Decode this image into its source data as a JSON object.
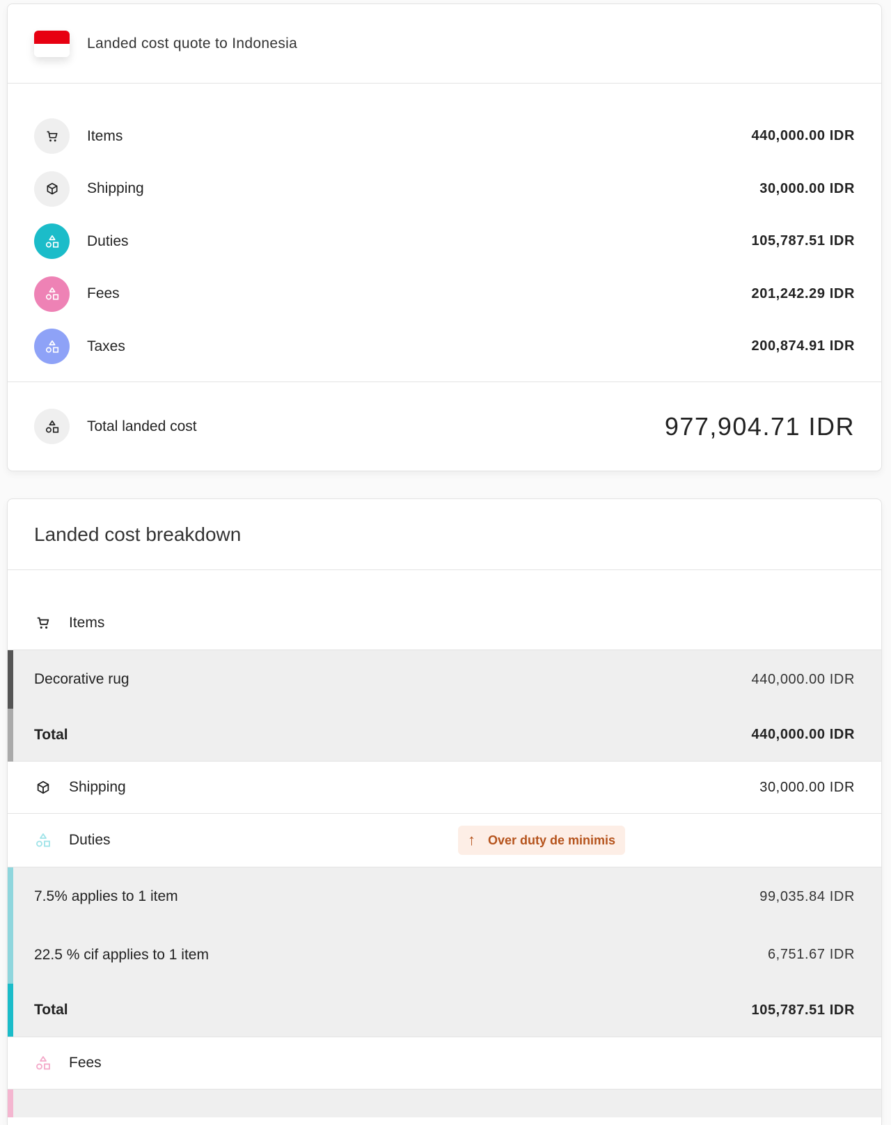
{
  "quote": {
    "title": "Landed cost quote to Indonesia",
    "flag_colors": [
      "#e70011",
      "#ffffff"
    ],
    "rows": [
      {
        "label": "Items",
        "amount": "440,000.00 IDR",
        "icon": "cart-icon",
        "color": "#efefef"
      },
      {
        "label": "Shipping",
        "amount": "30,000.00 IDR",
        "icon": "box-icon",
        "color": "#efefef"
      },
      {
        "label": "Duties",
        "amount": "105,787.51 IDR",
        "icon": "shapes-icon",
        "color": "#1bbcc9"
      },
      {
        "label": "Fees",
        "amount": "201,242.29 IDR",
        "icon": "shapes-icon",
        "color": "#ee82b5"
      },
      {
        "label": "Taxes",
        "amount": "200,874.91 IDR",
        "icon": "shapes-icon",
        "color": "#8ea2f7"
      }
    ],
    "total_label": "Total landed cost",
    "total_amount": "977,904.71 IDR"
  },
  "breakdown": {
    "title": "Landed cost breakdown",
    "items": {
      "label": "Items",
      "lines": [
        {
          "label": "Decorative rug",
          "amount": "440,000.00 IDR"
        }
      ],
      "total_label": "Total",
      "total_amount": "440,000.00 IDR"
    },
    "shipping": {
      "label": "Shipping",
      "amount": "30,000.00 IDR"
    },
    "duties": {
      "label": "Duties",
      "badge": "Over duty de minimis",
      "lines": [
        {
          "label": "7.5% applies to 1 item",
          "amount": "99,035.84 IDR"
        },
        {
          "label": "22.5 % cif applies to 1 item",
          "amount": "6,751.67 IDR"
        }
      ],
      "total_label": "Total",
      "total_amount": "105,787.51 IDR",
      "color": "#1bbcc9"
    },
    "fees": {
      "label": "Fees",
      "color": "#ee82b5"
    }
  }
}
